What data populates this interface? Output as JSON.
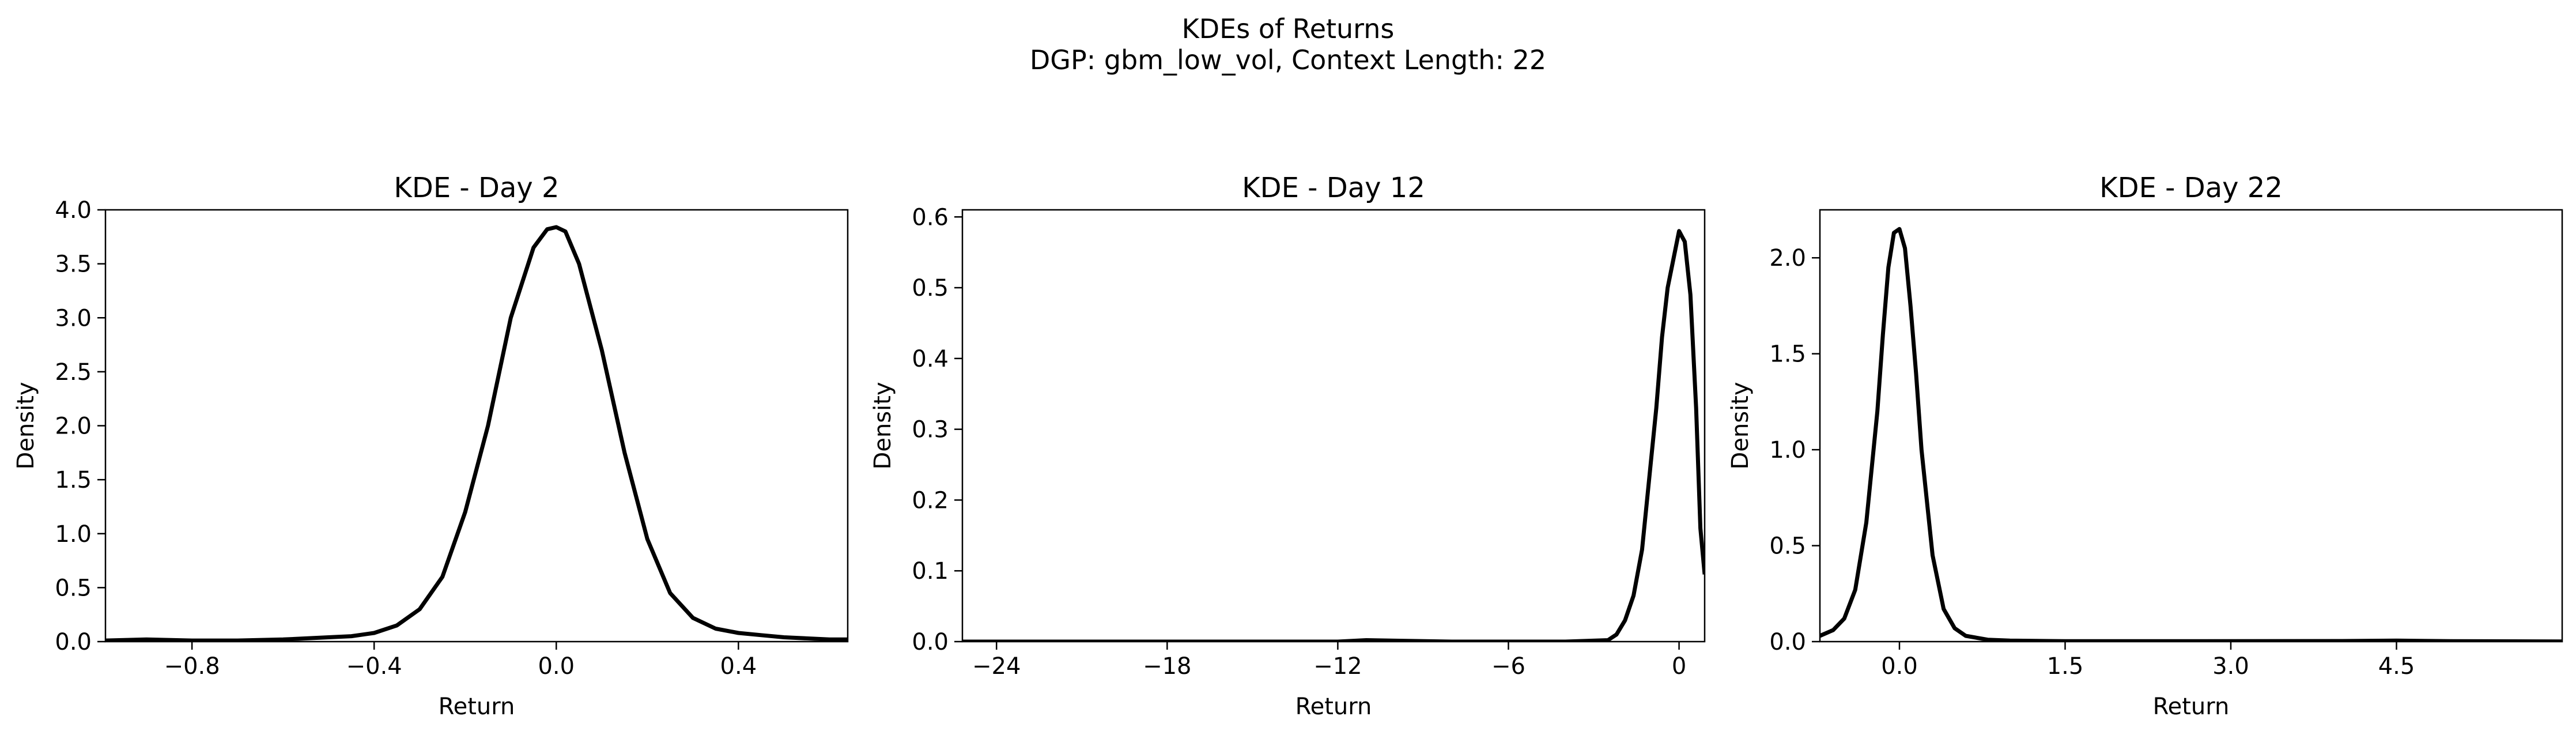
{
  "figure": {
    "title": "KDEs of Returns",
    "subtitle": "DGP: gbm_low_vol, Context Length: 22"
  },
  "chart_data": [
    {
      "type": "line",
      "title": "KDE - Day 2",
      "xlabel": "Return",
      "ylabel": "Density",
      "xlim": [
        -0.99,
        0.64
      ],
      "ylim": [
        0,
        4.0
      ],
      "xticks": [
        -0.8,
        -0.4,
        0.0,
        0.4
      ],
      "xtick_labels": [
        "−0.8",
        "−0.4",
        "0.0",
        "0.4"
      ],
      "yticks": [
        0,
        0.5,
        1.0,
        1.5,
        2.0,
        2.5,
        3.0,
        3.5,
        4.0
      ],
      "ytick_labels": [
        "0.0",
        "0.5",
        "1.0",
        "1.5",
        "2.0",
        "2.5",
        "3.0",
        "3.5",
        "4.0"
      ],
      "grid": false,
      "series": [
        {
          "color": "#000000",
          "x": [
            -0.99,
            -0.9,
            -0.8,
            -0.7,
            -0.6,
            -0.5,
            -0.45,
            -0.4,
            -0.35,
            -0.3,
            -0.25,
            -0.2,
            -0.15,
            -0.1,
            -0.05,
            -0.02,
            0.0,
            0.02,
            0.05,
            0.1,
            0.15,
            0.2,
            0.25,
            0.3,
            0.35,
            0.4,
            0.45,
            0.5,
            0.6,
            0.64
          ],
          "y": [
            0.01,
            0.02,
            0.01,
            0.01,
            0.02,
            0.04,
            0.05,
            0.08,
            0.15,
            0.3,
            0.6,
            1.2,
            2.0,
            3.0,
            3.65,
            3.82,
            3.84,
            3.8,
            3.5,
            2.7,
            1.75,
            0.95,
            0.45,
            0.22,
            0.12,
            0.08,
            0.06,
            0.04,
            0.02,
            0.02
          ]
        }
      ]
    },
    {
      "type": "line",
      "title": "KDE - Day 12",
      "xlabel": "Return",
      "ylabel": "Density",
      "xlim": [
        -25.2,
        0.9
      ],
      "ylim": [
        0,
        0.61
      ],
      "xticks": [
        -24,
        -18,
        -12,
        -6,
        0
      ],
      "xtick_labels": [
        "−24",
        "−18",
        "−12",
        "−6",
        "0"
      ],
      "yticks": [
        0,
        0.1,
        0.2,
        0.3,
        0.4,
        0.5,
        0.6
      ],
      "ytick_labels": [
        "0.0",
        "0.1",
        "0.2",
        "0.3",
        "0.4",
        "0.5",
        "0.6"
      ],
      "grid": false,
      "series": [
        {
          "color": "#000000",
          "x": [
            -25.2,
            -20,
            -15,
            -12,
            -11,
            -8,
            -4,
            -2.5,
            -2.2,
            -1.9,
            -1.6,
            -1.3,
            -1.0,
            -0.8,
            -0.6,
            -0.4,
            -0.2,
            0.0,
            0.2,
            0.4,
            0.6,
            0.75,
            0.9
          ],
          "y": [
            0.0,
            0.0,
            0.0,
            0.0,
            0.002,
            0.0,
            0.0,
            0.002,
            0.01,
            0.03,
            0.065,
            0.13,
            0.25,
            0.33,
            0.43,
            0.5,
            0.54,
            0.58,
            0.565,
            0.49,
            0.33,
            0.16,
            0.095
          ]
        }
      ]
    },
    {
      "type": "line",
      "title": "KDE - Day 22",
      "xlabel": "Return",
      "ylabel": "Density",
      "xlim": [
        -0.72,
        6.0
      ],
      "ylim": [
        0,
        2.25
      ],
      "xticks": [
        0.0,
        1.5,
        3.0,
        4.5
      ],
      "xtick_labels": [
        "0.0",
        "1.5",
        "3.0",
        "4.5"
      ],
      "yticks": [
        0,
        0.5,
        1.0,
        1.5,
        2.0
      ],
      "ytick_labels": [
        "0.0",
        "0.5",
        "1.0",
        "1.5",
        "2.0"
      ],
      "grid": false,
      "series": [
        {
          "color": "#000000",
          "x": [
            -0.72,
            -0.6,
            -0.5,
            -0.4,
            -0.3,
            -0.2,
            -0.15,
            -0.1,
            -0.05,
            0.0,
            0.05,
            0.1,
            0.15,
            0.2,
            0.3,
            0.4,
            0.5,
            0.6,
            0.8,
            1.0,
            1.5,
            2.5,
            4.0,
            4.5,
            5.0,
            6.0
          ],
          "y": [
            0.03,
            0.06,
            0.12,
            0.27,
            0.62,
            1.2,
            1.6,
            1.95,
            2.13,
            2.15,
            2.05,
            1.75,
            1.4,
            1.0,
            0.45,
            0.17,
            0.07,
            0.03,
            0.01,
            0.005,
            0.002,
            0.002,
            0.003,
            0.005,
            0.002,
            0.001
          ]
        }
      ]
    }
  ]
}
